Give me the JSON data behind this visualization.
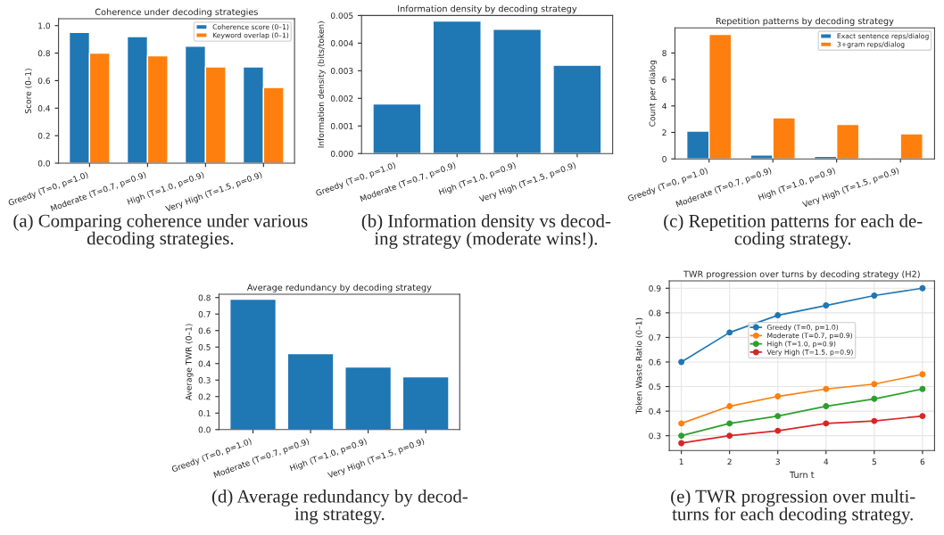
{
  "chart_data": [
    {
      "type": "bar",
      "title": "Coherence under decoding strategies",
      "ylabel": "Score (0–1)",
      "categories": [
        "Greedy (T=0, p=1.0)",
        "Moderate (T=0.7, p=0.9)",
        "High (T=1.0, p=0.9)",
        "Very High (T=1.5, p=0.9)"
      ],
      "series": [
        {
          "name": "Coherence score (0–1)",
          "color": "#1f77b4",
          "values": [
            0.95,
            0.92,
            0.85,
            0.7
          ]
        },
        {
          "name": "Keyword overlap (0–1)",
          "color": "#ff7f0e",
          "values": [
            0.8,
            0.78,
            0.7,
            0.55
          ]
        }
      ],
      "ylim": [
        0,
        1.05
      ],
      "yticks": [
        {
          "value": 0,
          "label": "0.0"
        },
        0.2,
        0.4,
        0.6,
        0.8,
        {
          "value": 1,
          "label": "1.0"
        }
      ],
      "legend": "top right",
      "grid": false,
      "annotations": [
        "(a) Comparing coherence under various\ndecoding strategies."
      ]
    },
    {
      "type": "bar",
      "title": "Information density by decoding strategy",
      "ylabel": "Information density (bits/token)",
      "categories": [
        "Greedy (T=0, p=1.0)",
        "Moderate (T=0.7, p=0.9)",
        "High (T=1.0, p=0.9)",
        "Very High (T=1.5, p=0.9)"
      ],
      "series": [
        {
          "color": "#1f77b4",
          "values": [
            0.0018,
            0.0048,
            0.0045,
            0.0032
          ]
        }
      ],
      "ylim": [
        0,
        0.005
      ],
      "yticks": [
        {
          "value": 0,
          "label": "0.000"
        },
        {
          "value": 0.001,
          "label": "0.001"
        },
        {
          "value": 0.002,
          "label": "0.002"
        },
        {
          "value": 0.003,
          "label": "0.003"
        },
        {
          "value": 0.004,
          "label": "0.004"
        },
        {
          "value": 0.005,
          "label": "0.005"
        }
      ],
      "grid": false,
      "annotations": [
        "(b) Information density vs decod-\ning strategy (moderate wins!)."
      ]
    },
    {
      "type": "bar",
      "title": "Repetition patterns by decoding strategy",
      "ylabel": "Count per dialog",
      "categories": [
        "Greedy (T=0, p=1.0)",
        "Moderate (T=0.7, p=0.9)",
        "High (T=1.0, p=0.9)",
        "Very High (T=1.5, p=0.9)"
      ],
      "series": [
        {
          "name": "Exact sentence reps/dialog",
          "color": "#1f77b4",
          "values": [
            2.1,
            0.3,
            0.2,
            0.1
          ]
        },
        {
          "name": "3+gram reps/dialog",
          "color": "#ff7f0e",
          "values": [
            9.4,
            3.1,
            2.6,
            1.9
          ]
        }
      ],
      "ylim": [
        0,
        9.9
      ],
      "yticks": [
        0,
        2,
        4,
        6,
        8
      ],
      "legend": "top right",
      "grid": false,
      "annotations": [
        "(c) Repetition patterns for each de-\ncoding strategy."
      ]
    },
    {
      "type": "bar",
      "title": "Average redundancy by decoding strategy",
      "ylabel": "Average TWR (0–1)",
      "categories": [
        "Greedy (T=0, p=1.0)",
        "Moderate (T=0.7, p=0.9)",
        "High (T=1.0, p=0.9)",
        "Very High (T=1.5, p=0.9)"
      ],
      "series": [
        {
          "color": "#1f77b4",
          "values": [
            0.79,
            0.46,
            0.38,
            0.32
          ]
        }
      ],
      "ylim": [
        0,
        0.82
      ],
      "yticks": [
        {
          "value": 0,
          "label": "0.0"
        },
        0.1,
        0.2,
        0.3,
        0.4,
        0.5,
        0.6,
        0.7,
        0.8
      ],
      "grid": false,
      "annotations": [
        "(d) Average redundancy by decod-\ning strategy."
      ]
    },
    {
      "type": "line",
      "title": "TWR progression over turns by decoding strategy (H2)",
      "xlabel": "Turn t",
      "ylabel": "Token Waste Ratio (0–1)",
      "x": [
        1,
        2,
        3,
        4,
        5,
        6
      ],
      "series": [
        {
          "name": "Greedy (T=0, p=1.0)",
          "color": "#1f77b4",
          "values": [
            0.6,
            0.72,
            0.79,
            0.83,
            0.87,
            0.9
          ]
        },
        {
          "name": "Moderate (T=0.7, p=0.9)",
          "color": "#ff7f0e",
          "values": [
            0.35,
            0.42,
            0.46,
            0.49,
            0.51,
            0.55
          ]
        },
        {
          "name": "High (T=1.0, p=0.9)",
          "color": "#2ca02c",
          "values": [
            0.3,
            0.35,
            0.38,
            0.42,
            0.45,
            0.49
          ]
        },
        {
          "name": "Very High (T=1.5, p=0.9)",
          "color": "#d62728",
          "values": [
            0.27,
            0.3,
            0.32,
            0.35,
            0.36,
            0.38
          ]
        }
      ],
      "xlim": [
        0.75,
        6.25
      ],
      "xticks": [
        1,
        2,
        3,
        4,
        5,
        6
      ],
      "ylim": [
        0.24,
        0.93
      ],
      "yticks": [
        0.3,
        0.4,
        0.5,
        0.6,
        0.7,
        0.8,
        0.9
      ],
      "grid": true,
      "marker": "circle",
      "line_style": "solid",
      "legend": "center",
      "annotations": [
        "(e) TWR progression over multi-\nturns for each decoding strategy."
      ]
    }
  ]
}
